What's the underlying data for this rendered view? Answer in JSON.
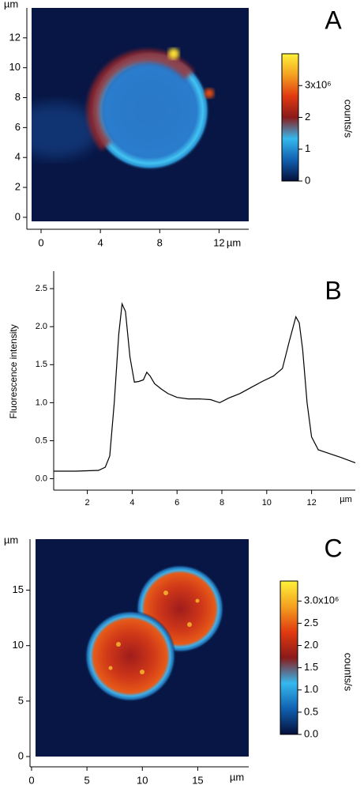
{
  "chart_data": [
    {
      "type": "heatmap",
      "panel_label": "A",
      "x_unit": "µm",
      "y_unit": "µm",
      "xlim": [
        -0.64,
        14.0
      ],
      "xticks": [
        0,
        4,
        8,
        12
      ],
      "ylim": [
        -0.27,
        14.0
      ],
      "yticks": [
        0,
        2,
        4,
        6,
        8,
        10,
        12
      ],
      "colorbar": {
        "label": "counts/s",
        "lim": [
          0,
          4
        ],
        "ticks": [
          0,
          1,
          2,
          {
            "value": 3,
            "label": "3x10⁶"
          }
        ],
        "colors": [
          "#050f3a",
          "#1060b0",
          "#35b8ee",
          "#8a1a1a",
          "#e03a10",
          "#f4a020",
          "#fff23a"
        ]
      }
    },
    {
      "type": "line",
      "panel_label": "B",
      "ylabel": "Fluorescence intensity",
      "x_unit": "µm",
      "xlim": [
        0.5,
        13.95
      ],
      "xticks": [
        2,
        4,
        6,
        8,
        10,
        12
      ],
      "ylim": [
        -0.15,
        2.73
      ],
      "yticks": [
        {
          "value": 0,
          "label": "0.0"
        },
        0.5,
        {
          "value": 1,
          "label": "1.0"
        },
        1.5,
        {
          "value": 2,
          "label": "2.0"
        },
        2.5
      ],
      "x": [
        0.5,
        1.5,
        2.5,
        2.8,
        3.0,
        3.2,
        3.4,
        3.55,
        3.7,
        3.9,
        4.1,
        4.3,
        4.5,
        4.65,
        4.8,
        5.0,
        5.3,
        5.6,
        6.0,
        6.5,
        7.0,
        7.5,
        7.9,
        8.3,
        8.8,
        9.3,
        9.8,
        10.3,
        10.7,
        11.0,
        11.3,
        11.45,
        11.6,
        11.8,
        12.0,
        12.3,
        12.8,
        13.3,
        13.95
      ],
      "series": [
        {
          "color": "#000000",
          "values": [
            0.1,
            0.1,
            0.11,
            0.15,
            0.3,
            1.0,
            1.9,
            2.3,
            2.2,
            1.6,
            1.27,
            1.28,
            1.3,
            1.4,
            1.35,
            1.25,
            1.18,
            1.12,
            1.07,
            1.05,
            1.05,
            1.04,
            1.0,
            1.06,
            1.12,
            1.2,
            1.28,
            1.35,
            1.45,
            1.8,
            2.13,
            2.05,
            1.7,
            1.0,
            0.55,
            0.38,
            0.33,
            0.28,
            0.21
          ]
        }
      ]
    },
    {
      "type": "heatmap",
      "panel_label": "C",
      "x_unit": "µm",
      "y_unit": "µm",
      "xlim": [
        0.36,
        19.6
      ],
      "xticks": [
        0,
        5,
        10,
        15
      ],
      "ylim": [
        0,
        19.6
      ],
      "yticks": [
        0,
        5,
        10,
        15
      ],
      "colorbar": {
        "label": "counts/s",
        "lim": [
          0,
          3.45
        ],
        "ticks": [
          {
            "value": 0,
            "label": "0.0"
          },
          0.5,
          {
            "value": 1,
            "label": "1.0"
          },
          1.5,
          {
            "value": 2,
            "label": "2.0"
          },
          2.5,
          {
            "value": 3,
            "label": "3.0x10⁶"
          }
        ],
        "colors": [
          "#050f3a",
          "#1060b0",
          "#35b8ee",
          "#8a1a1a",
          "#e03a10",
          "#f4a020",
          "#fff23a"
        ]
      }
    }
  ]
}
